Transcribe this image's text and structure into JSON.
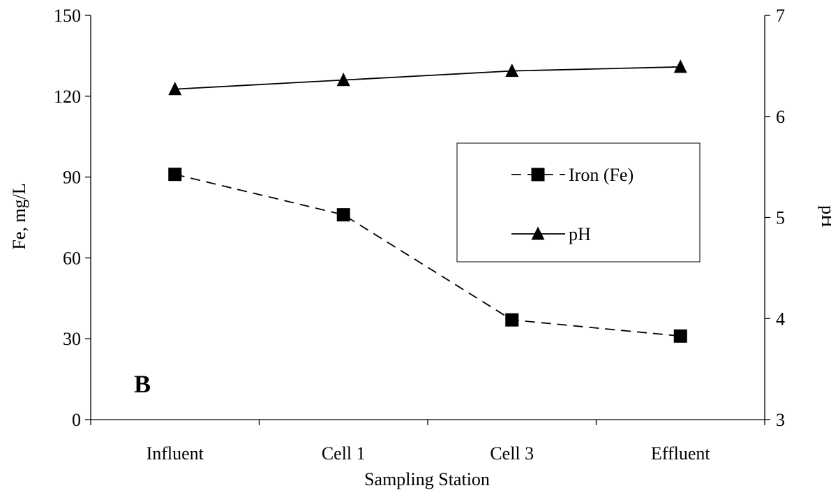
{
  "chart_data": {
    "type": "line",
    "panel_label": "B",
    "categories": [
      "Influent",
      "Cell 1",
      "Cell 3",
      "Effluent"
    ],
    "xlabel": "Sampling Station",
    "ylabel_left": "Fe, mg/L",
    "ylabel_right": "pH",
    "ylim_left": [
      0,
      150
    ],
    "yticks_left": [
      0,
      30,
      60,
      90,
      120,
      150
    ],
    "ylim_right": [
      3,
      7
    ],
    "yticks_right": [
      3,
      4,
      5,
      6,
      7
    ],
    "grid": false,
    "legend_position": "center-right",
    "series": [
      {
        "name": "Iron (Fe)",
        "axis": "left",
        "values": [
          91,
          76,
          37,
          31
        ],
        "marker": "square",
        "line_style": "dashed",
        "color": "#000000"
      },
      {
        "name": "pH",
        "axis": "right",
        "values": [
          6.27,
          6.36,
          6.45,
          6.49
        ],
        "marker": "triangle",
        "line_style": "solid",
        "color": "#000000"
      }
    ]
  }
}
